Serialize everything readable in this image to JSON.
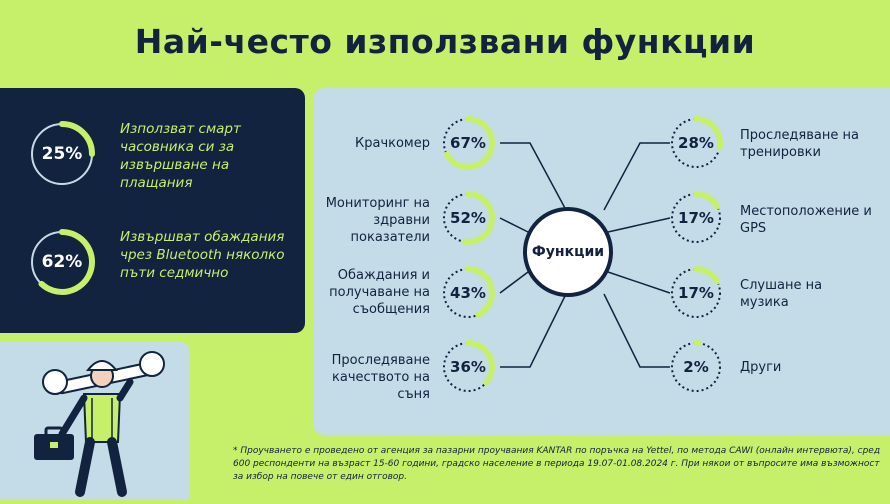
{
  "title": "Най-често използвани функции",
  "left_stats": [
    {
      "pct": "25%",
      "value": 25,
      "text": "Използват смарт часовника си за извършване на плащания"
    },
    {
      "pct": "62%",
      "value": 62,
      "text": "Извършват обаждания чрез Bluetooth няколко пъти седмично"
    }
  ],
  "center_label": "Функции",
  "left_features": [
    {
      "pct": "67%",
      "value": 67,
      "label": "Крачкомер"
    },
    {
      "pct": "52%",
      "value": 52,
      "label": "Мониторинг на здравни показатели"
    },
    {
      "pct": "43%",
      "value": 43,
      "label": "Обаждания и получаване на съобщения"
    },
    {
      "pct": "36%",
      "value": 36,
      "label": "Проследяване качеството на съня"
    }
  ],
  "right_features": [
    {
      "pct": "28%",
      "value": 28,
      "label": "Проследяване на тренировки"
    },
    {
      "pct": "17%",
      "value": 17,
      "label": "Местоположение и GPS"
    },
    {
      "pct": "17%",
      "value": 17,
      "label": "Слушане на музика"
    },
    {
      "pct": "2%",
      "value": 2,
      "label": "Други"
    }
  ],
  "footnote": "* Проучването е проведено от агенция за пазарни проучвания KANTAR по поръчка на Yettel, по метода CAWI (онлайн интервюта), сред 600 респонденти на възраст 15-60 години, градско население в периода 19.07-01.08.2024 г. При някои от въпросите има възможност за избор на повече от един отговор.",
  "colors": {
    "navy": "#12233f",
    "lime": "#c6f06a",
    "light_blue": "#c4dbe8"
  }
}
